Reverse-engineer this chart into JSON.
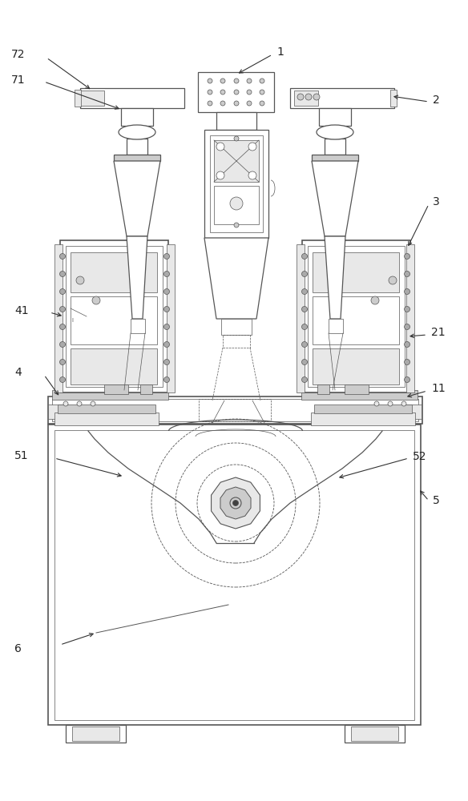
{
  "bg_color": "#ffffff",
  "lc": "#555555",
  "lc_dark": "#333333",
  "lc_light": "#888888",
  "lw": 0.9,
  "lw_thin": 0.5,
  "lw_thick": 1.2,
  "fc_white": "#ffffff",
  "fc_light": "#e8e8e8",
  "fc_mid": "#cccccc",
  "fc_dark": "#aaaaaa"
}
